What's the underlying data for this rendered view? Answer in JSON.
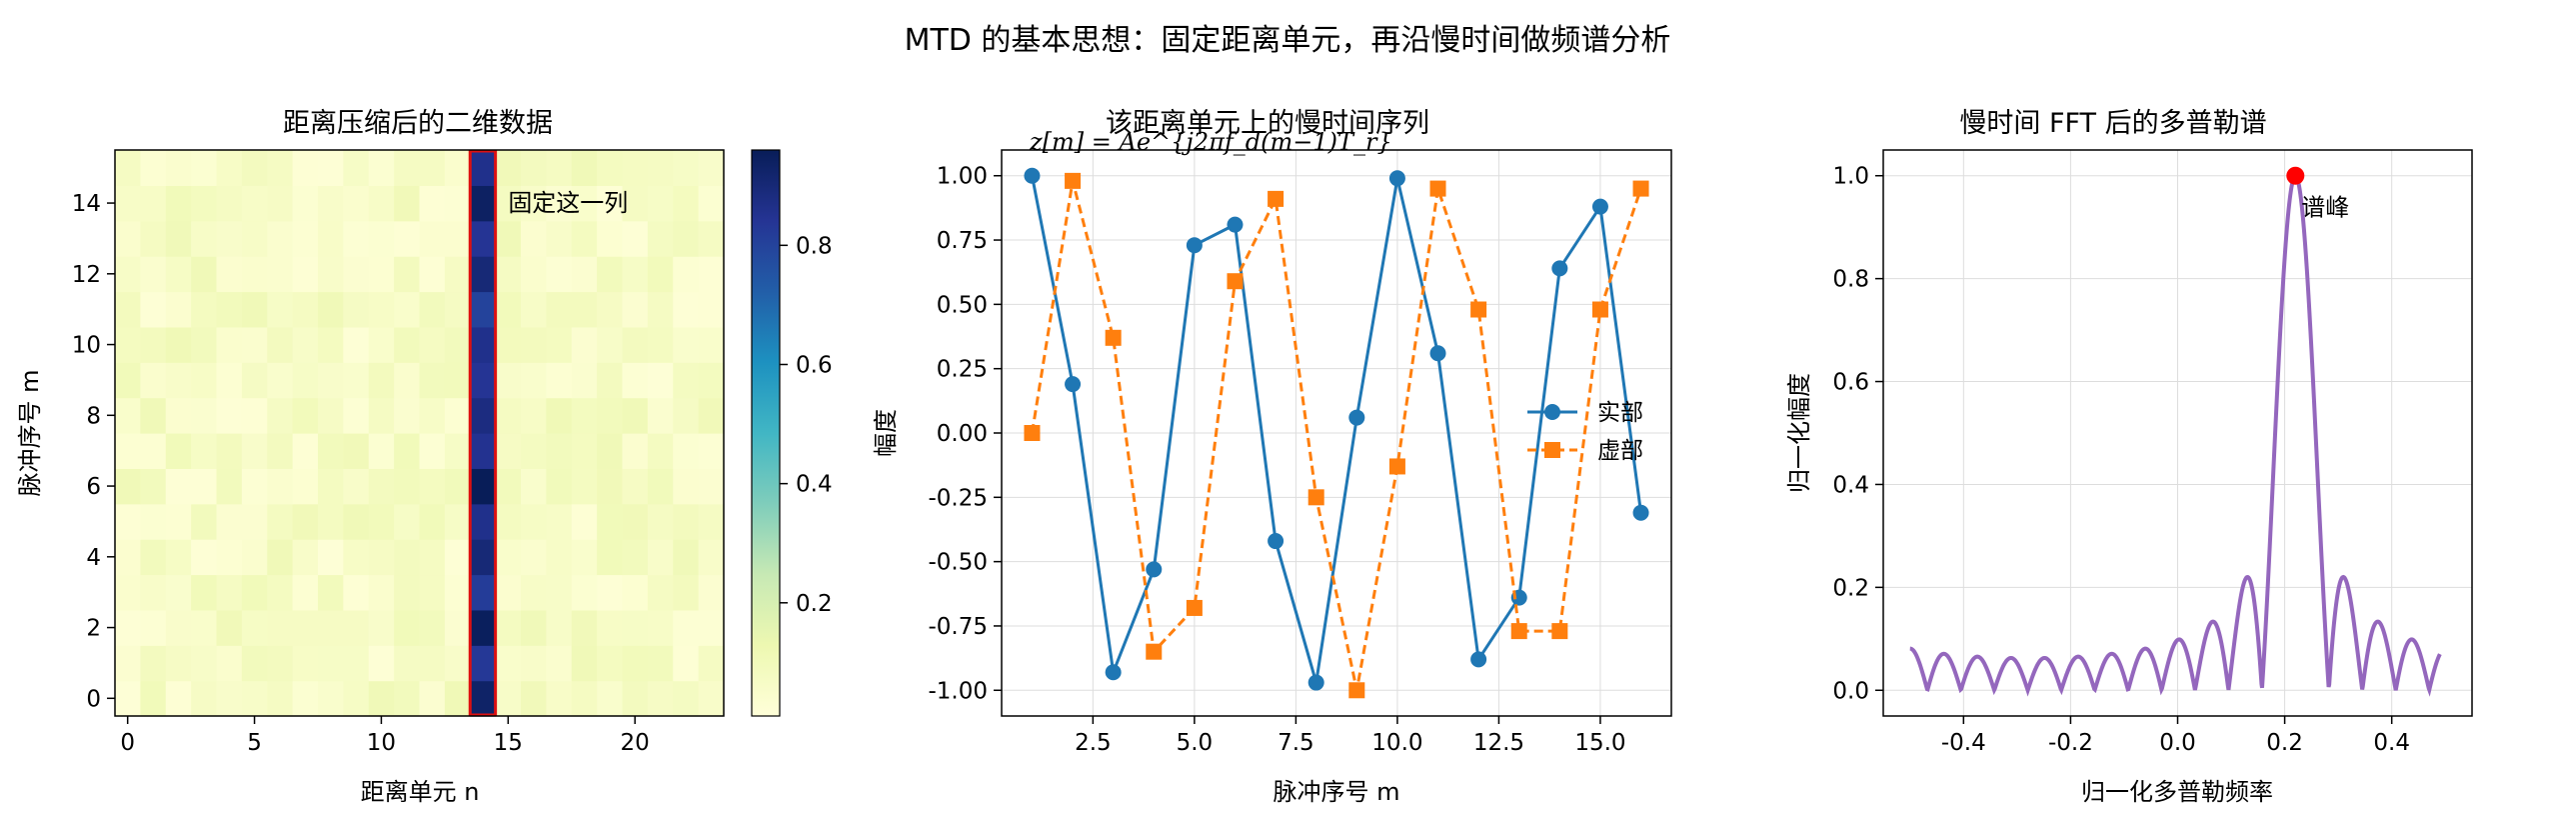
{
  "figure": {
    "title": "MTD 的基本思想：固定距离单元，再沿慢时间做频谱分析"
  },
  "colors": {
    "real": "#1f77b4",
    "imag": "#ff7f0e",
    "spectrum": "#9467bd",
    "peak": "#ff0000",
    "highlight": "#dd1111",
    "annotation": "#dd1111",
    "grid": "#dddddd"
  },
  "chart_data": [
    {
      "type": "heatmap",
      "title": "距离压缩后的二维数据",
      "xlabel": "距离单元 n",
      "ylabel": "脉冲序号 m",
      "xlim": [
        -0.5,
        23.5
      ],
      "ylim": [
        -0.5,
        15.5
      ],
      "xticks": [
        0,
        5,
        10,
        15,
        20
      ],
      "yticks": [
        0,
        2,
        4,
        6,
        8,
        10,
        12,
        14
      ],
      "n_cols": 24,
      "n_rows": 16,
      "colormap": "YlGnBu",
      "target_column": 14,
      "target_values": [
        0.93,
        0.83,
        0.95,
        0.82,
        0.9,
        0.86,
        0.96,
        0.85,
        0.88,
        0.84,
        0.86,
        0.8,
        0.9,
        0.84,
        0.94,
        0.86
      ],
      "background_range": [
        0.02,
        0.11
      ],
      "colorbar": {
        "ticks": [
          0.2,
          0.4,
          0.6,
          0.8
        ],
        "range": [
          0.01,
          0.96
        ]
      },
      "annotation": "固定这一列"
    },
    {
      "type": "line",
      "title": "该距离单元上的慢时间序列",
      "formula": "z[m] = Ae^{j2πf_d(m−1)T_r}",
      "xlabel": "脉冲序号 m",
      "ylabel": "幅度",
      "xlim": [
        0.25,
        16.75
      ],
      "ylim": [
        -1.1,
        1.1
      ],
      "xticks": [
        2.5,
        5.0,
        7.5,
        10.0,
        12.5,
        15.0
      ],
      "xtick_labels": [
        "2.5",
        "5.0",
        "7.5",
        "10.0",
        "12.5",
        "15.0"
      ],
      "yticks": [
        -1.0,
        -0.75,
        -0.5,
        -0.25,
        0.0,
        0.25,
        0.5,
        0.75,
        1.0
      ],
      "ytick_labels": [
        "-1.00",
        "-0.75",
        "-0.50",
        "-0.25",
        "0.00",
        "0.25",
        "0.50",
        "0.75",
        "1.00"
      ],
      "grid": true,
      "legend_position": "right",
      "x": [
        1,
        2,
        3,
        4,
        5,
        6,
        7,
        8,
        9,
        10,
        11,
        12,
        13,
        14,
        15,
        16
      ],
      "series": [
        {
          "name": "实部",
          "style": "solid-circle",
          "values": [
            1.0,
            0.19,
            -0.93,
            -0.53,
            0.73,
            0.81,
            -0.42,
            -0.97,
            0.06,
            0.99,
            0.31,
            -0.88,
            -0.64,
            0.64,
            0.88,
            -0.31
          ]
        },
        {
          "name": "虚部",
          "style": "dashed-square",
          "values": [
            0.0,
            0.98,
            0.37,
            -0.85,
            -0.68,
            0.59,
            0.91,
            -0.25,
            -1.0,
            -0.13,
            0.95,
            0.48,
            -0.77,
            -0.77,
            0.48,
            0.95
          ]
        }
      ]
    },
    {
      "type": "line",
      "title": "慢时间 FFT 后的多普勒谱",
      "xlabel": "归一化多普勒频率",
      "ylabel": "归一化幅度",
      "xlim": [
        -0.55,
        0.55
      ],
      "ylim": [
        -0.05,
        1.05
      ],
      "xticks": [
        -0.4,
        -0.2,
        0.0,
        0.2,
        0.4
      ],
      "xtick_labels": [
        "-0.4",
        "-0.2",
        "0.0",
        "0.2",
        "0.4"
      ],
      "yticks": [
        0.0,
        0.2,
        0.4,
        0.6,
        0.8,
        1.0
      ],
      "ytick_labels": [
        "0.0",
        "0.2",
        "0.4",
        "0.6",
        "0.8",
        "1.0"
      ],
      "grid": true,
      "N": 16,
      "peak_frequency": 0.22,
      "x_range": [
        -0.5,
        0.49
      ],
      "peak": {
        "x": 0.22,
        "y": 1.0,
        "label": "谱峰"
      }
    }
  ]
}
